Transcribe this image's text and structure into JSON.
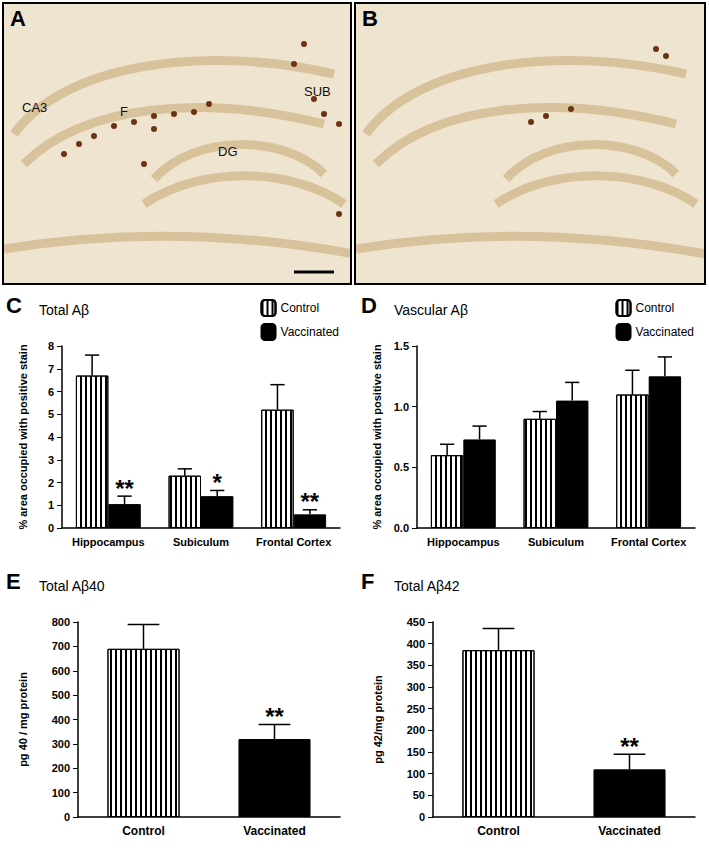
{
  "images": [
    {
      "panel": "A",
      "labels": [
        "CA3",
        "F",
        "SUB",
        "DG"
      ]
    },
    {
      "panel": "B"
    }
  ],
  "chart_data": [
    {
      "panel": "C",
      "type": "bar",
      "title": "Total Aβ",
      "y_label": "% area occupied with positive stain",
      "categories": [
        "Hippocampus",
        "Subiculum",
        "Frontal Cortex"
      ],
      "series": [
        {
          "name": "Control",
          "color": "#000000",
          "marker": "vertical_stripes",
          "values": [
            6.7,
            2.3,
            5.2
          ],
          "errors": [
            0.9,
            0.3,
            1.1
          ]
        },
        {
          "name": "Vaccinated",
          "color": "#000000",
          "marker": "solid",
          "values": [
            1.05,
            1.4,
            0.6
          ],
          "errors": [
            0.35,
            0.25,
            0.2
          ],
          "significance": [
            "**",
            "*",
            "**"
          ]
        }
      ],
      "ylim": [
        0,
        8
      ],
      "yticks": [
        0,
        1,
        2,
        3,
        4,
        5,
        6,
        7,
        8
      ],
      "legend": "upper right",
      "grid": false
    },
    {
      "panel": "D",
      "type": "bar",
      "title": "Vascular Aβ",
      "y_label": "% area occupied with positive stain",
      "categories": [
        "Hippocampus",
        "Subiculum",
        "Frontal Cortex"
      ],
      "series": [
        {
          "name": "Control",
          "color": "#000000",
          "marker": "vertical_stripes",
          "values": [
            0.6,
            0.9,
            1.1
          ],
          "errors": [
            0.09,
            0.06,
            0.2
          ]
        },
        {
          "name": "Vaccinated",
          "color": "#000000",
          "marker": "solid",
          "values": [
            0.73,
            1.05,
            1.25
          ],
          "errors": [
            0.11,
            0.15,
            0.16
          ]
        }
      ],
      "ylim": [
        0,
        1.5
      ],
      "yticks": [
        {
          "value": 0,
          "label": "0.0"
        },
        0.5,
        {
          "value": 1,
          "label": "1.0"
        },
        1.5
      ],
      "legend": "upper right",
      "grid": false
    },
    {
      "panel": "E",
      "type": "bar",
      "title": "Total Aβ40",
      "y_label": "pg 40 / mg protein",
      "categories": [
        "Control",
        "Vaccinated"
      ],
      "series": [
        {
          "name": "Control",
          "color": "#000000",
          "marker": "vertical_stripes",
          "values": [
            690,
            null
          ],
          "errors": [
            100,
            null
          ]
        },
        {
          "name": "Vaccinated",
          "color": "#000000",
          "marker": "solid",
          "values": [
            null,
            320
          ],
          "errors": [
            null,
            60
          ],
          "significance": [
            null,
            "**"
          ]
        }
      ],
      "ylim": [
        0,
        800
      ],
      "yticks": [
        0,
        100,
        200,
        300,
        400,
        500,
        600,
        700,
        800
      ],
      "grid": false
    },
    {
      "panel": "F",
      "type": "bar",
      "title": "Total Aβ42",
      "y_label": "pg 42/mg protein",
      "categories": [
        "Control",
        "Vaccinated"
      ],
      "series": [
        {
          "name": "Control",
          "color": "#000000",
          "marker": "vertical_stripes",
          "values": [
            385,
            null
          ],
          "errors": [
            50,
            null
          ]
        },
        {
          "name": "Vaccinated",
          "color": "#000000",
          "marker": "solid",
          "values": [
            null,
            110
          ],
          "errors": [
            null,
            35
          ],
          "significance": [
            null,
            "**"
          ]
        }
      ],
      "ylim": [
        0,
        450
      ],
      "yticks": [
        0,
        50,
        100,
        150,
        200,
        250,
        300,
        350,
        400,
        450
      ],
      "grid": false
    }
  ]
}
